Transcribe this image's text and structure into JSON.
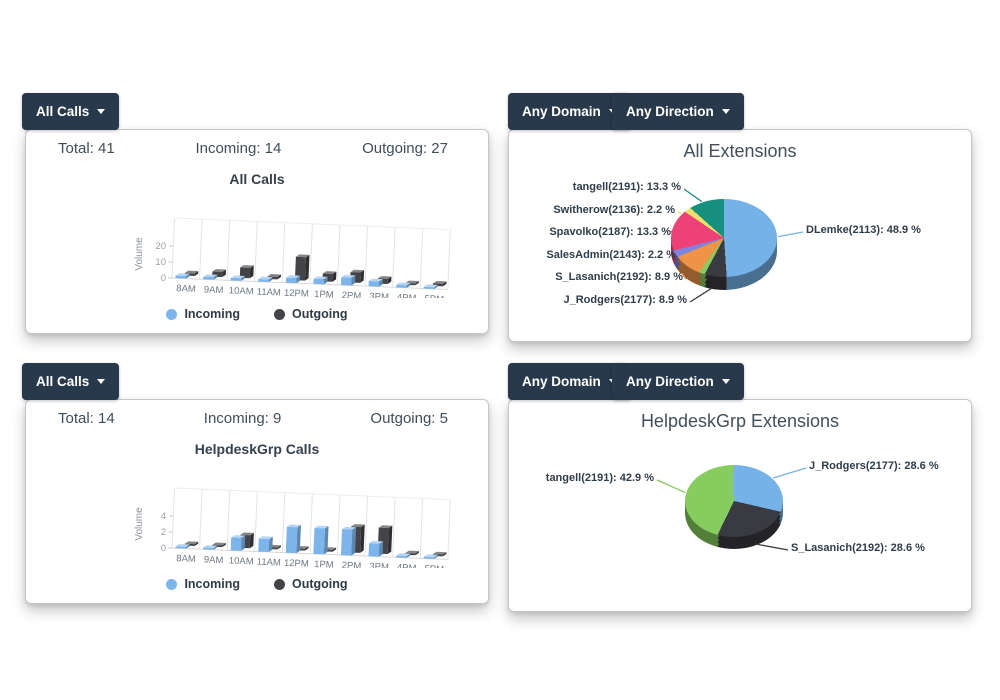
{
  "colors": {
    "button_bg": "#27394b",
    "incoming": "#7cb5ec",
    "outgoing": "#434348",
    "panel_border": "#c6c6c6",
    "text": "#3c4b57"
  },
  "panels": {
    "top_left": {
      "button_label": "All Calls",
      "stats": {
        "total": "Total: 41",
        "incoming": "Incoming: 14",
        "outgoing": "Outgoing: 27"
      }
    },
    "top_right": {
      "button_domain": "Any Domain",
      "button_direction": "Any Direction"
    },
    "bottom_left": {
      "button_label": "All Calls",
      "stats": {
        "total": "Total: 14",
        "incoming": "Incoming: 9",
        "outgoing": "Outgoing: 5"
      }
    },
    "bottom_right": {
      "button_domain": "Any Domain",
      "button_direction": "Any Direction"
    }
  },
  "chart_data": [
    {
      "type": "bar",
      "style": "3d-column",
      "title": "All Calls",
      "xlabel": "",
      "ylabel": "Volume",
      "categories": [
        "8AM",
        "9AM",
        "10AM",
        "11AM",
        "12PM",
        "1PM",
        "2PM",
        "3PM",
        "4PM",
        "5PM"
      ],
      "yticks": [
        0,
        10,
        20
      ],
      "ylim": [
        0,
        20
      ],
      "grid": true,
      "legend_position": "bottom",
      "series": [
        {
          "name": "Incoming",
          "color": "#7cb5ec",
          "values": [
            1,
            1,
            1,
            1,
            2,
            2,
            3,
            2,
            1,
            0
          ]
        },
        {
          "name": "Outgoing",
          "color": "#434348",
          "values": [
            1,
            2,
            4,
            1,
            9,
            3,
            4,
            2,
            0,
            1
          ]
        }
      ]
    },
    {
      "type": "pie",
      "style": "3d-pie",
      "title": "All Extensions",
      "slices": [
        {
          "label": "DLemke(2113): 48.9 %",
          "name": "DLemke(2113)",
          "pct": 48.9,
          "color": "#74b2e8"
        },
        {
          "label": "J_Rodgers(2177): 8.9 %",
          "name": "J_Rodgers(2177)",
          "pct": 8.9,
          "color": "#3a3a41"
        },
        {
          "label": "",
          "name": "",
          "pct": 2.2,
          "color": "#84cd5e"
        },
        {
          "label": "S_Lasanich(2192): 8.9 %",
          "name": "S_Lasanich(2192)",
          "pct": 8.9,
          "color": "#ef9447"
        },
        {
          "label": "SalesAdmin(2143): 2.2 %",
          "name": "SalesAdmin(2143)",
          "pct": 2.2,
          "color": "#7d84e0"
        },
        {
          "label": "Spavolko(2187): 13.3 %",
          "name": "Spavolko(2187)",
          "pct": 13.3,
          "color": "#ee4177"
        },
        {
          "label": "Switherow(2136): 2.2 %",
          "name": "Switherow(2136)",
          "pct": 2.2,
          "color": "#eee06a"
        },
        {
          "label": "tangell(2191): 13.3 %",
          "name": "tangell(2191)",
          "pct": 13.3,
          "color": "#16917f"
        }
      ]
    },
    {
      "type": "bar",
      "style": "3d-column",
      "title": "HelpdeskGrp Calls",
      "xlabel": "",
      "ylabel": "Volume",
      "categories": [
        "8AM",
        "9AM",
        "10AM",
        "11AM",
        "12PM",
        "1PM",
        "2PM",
        "3PM",
        "4PM",
        "5PM"
      ],
      "yticks": [
        0,
        2,
        4
      ],
      "ylim": [
        0,
        4
      ],
      "grid": true,
      "legend_position": "bottom",
      "series": [
        {
          "name": "Incoming",
          "color": "#7cb5ec",
          "values": [
            0,
            0,
            1,
            1,
            2,
            2,
            2,
            1,
            0,
            0
          ]
        },
        {
          "name": "Outgoing",
          "color": "#434348",
          "values": [
            0,
            0,
            1,
            0,
            0,
            0,
            2,
            2,
            0,
            0
          ]
        }
      ]
    },
    {
      "type": "pie",
      "style": "3d-pie",
      "title": "HelpdeskGrp Extensions",
      "slices": [
        {
          "label": "J_Rodgers(2177): 28.6 %",
          "name": "J_Rodgers(2177)",
          "pct": 28.6,
          "color": "#74b2e8"
        },
        {
          "label": "S_Lasanich(2192): 28.6 %",
          "name": "S_Lasanich(2192)",
          "pct": 28.6,
          "color": "#3a3a41"
        },
        {
          "label": "tangell(2191): 42.9 %",
          "name": "tangell(2191)",
          "pct": 42.9,
          "color": "#84cd5e"
        }
      ]
    }
  ]
}
